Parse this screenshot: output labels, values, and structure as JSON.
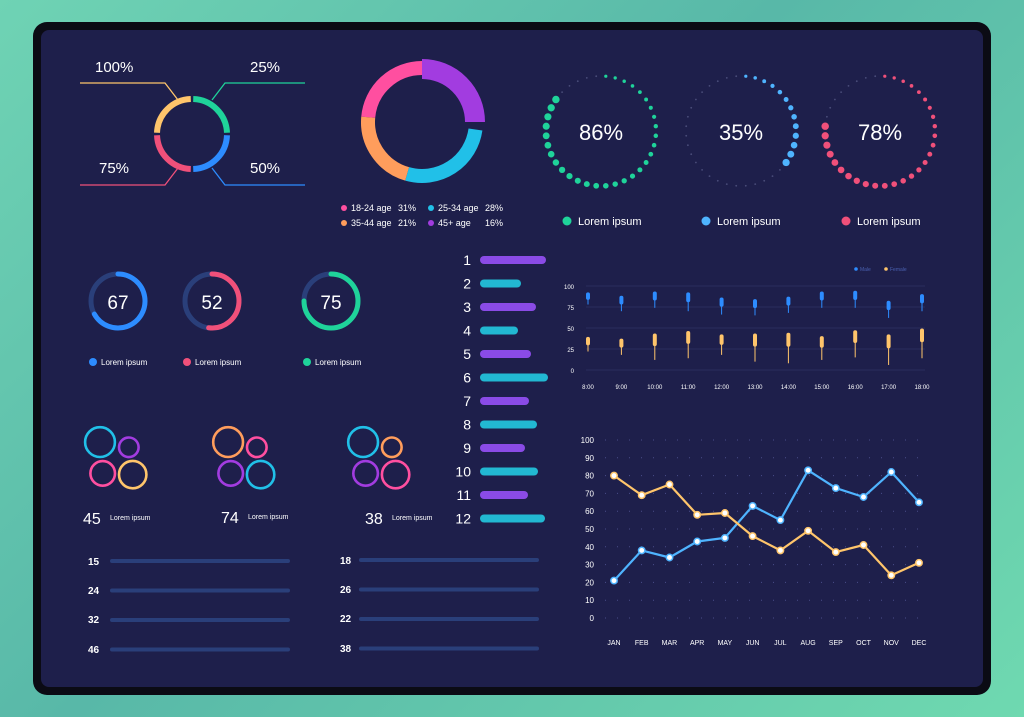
{
  "colors": {
    "blue": "#2d8cff",
    "pink": "#f0507a",
    "green": "#1fd39a",
    "yellow": "#ffc56b",
    "orange": "#ff9d5c",
    "purple": "#a23ce0",
    "cyan": "#21c0e8",
    "violet": "#8a4be6",
    "teal": "#22b8d2",
    "track": "#2a3f7a"
  },
  "ring_callouts": [
    {
      "label": "100%",
      "color": "#ffc56b"
    },
    {
      "label": "25%",
      "color": "#1fd39a"
    },
    {
      "label": "75%",
      "color": "#f0507a"
    },
    {
      "label": "50%",
      "color": "#2d8cff"
    }
  ],
  "age_donut": {
    "legend": [
      {
        "label": "18-24 age",
        "value": "31%",
        "color": "#ff4fa0"
      },
      {
        "label": "25-34 age",
        "value": "28%",
        "color": "#21c0e8"
      },
      {
        "label": "35-44 age",
        "value": "21%",
        "color": "#ff9d5c"
      },
      {
        "label": "45+ age",
        "value": "16%",
        "color": "#a23ce0"
      }
    ]
  },
  "dot_gauges": [
    {
      "value": "86%",
      "fraction": 0.86,
      "label": "Lorem ipsum",
      "color": "#1fd39a"
    },
    {
      "value": "35%",
      "fraction": 0.35,
      "label": "Lorem ipsum",
      "color": "#4fb4ff"
    },
    {
      "value": "78%",
      "fraction": 0.78,
      "label": "Lorem ipsum",
      "color": "#f0507a"
    }
  ],
  "ring_gauges": [
    {
      "value": "67",
      "fraction": 0.67,
      "label": "Lorem ipsum",
      "color": "#2d8cff"
    },
    {
      "value": "52",
      "fraction": 0.52,
      "label": "Lorem ipsum",
      "color": "#f0507a"
    },
    {
      "value": "75",
      "fraction": 0.75,
      "label": "Lorem ipsum",
      "color": "#1fd39a"
    }
  ],
  "flowers": [
    {
      "value": "45",
      "label": "Lorem ipsum"
    },
    {
      "value": "74",
      "label": "Lorem ipsum"
    },
    {
      "value": "38",
      "label": "Lorem ipsum"
    }
  ],
  "progress_left": [
    {
      "label": "15",
      "fraction": 0.72
    },
    {
      "label": "24",
      "fraction": 0.49
    },
    {
      "label": "32",
      "fraction": 0.63
    },
    {
      "label": "46",
      "fraction": 0.43
    }
  ],
  "progress_right": [
    {
      "label": "18",
      "fraction": 0.47
    },
    {
      "label": "26",
      "fraction": 0.77
    },
    {
      "label": "22",
      "fraction": 0.55
    },
    {
      "label": "38",
      "fraction": 0.66
    }
  ],
  "chart_data": [
    {
      "type": "bar",
      "orientation": "horizontal",
      "categories": [
        "1",
        "2",
        "3",
        "4",
        "5",
        "6",
        "7",
        "8",
        "9",
        "10",
        "11",
        "12"
      ],
      "values": [
        58,
        33,
        48,
        30,
        43,
        60,
        41,
        49,
        37,
        50,
        40,
        57
      ],
      "colors": [
        "#8a4be6",
        "#22b8d2",
        "#8a4be6",
        "#22b8d2",
        "#8a4be6",
        "#22b8d2",
        "#8a4be6",
        "#22b8d2",
        "#8a4be6",
        "#22b8d2",
        "#8a4be6",
        "#22b8d2"
      ]
    },
    {
      "type": "scatter",
      "description_free": "",
      "legend": [
        {
          "name": "Male",
          "color": "#2d8cff"
        },
        {
          "name": "Female",
          "color": "#ffc56b"
        }
      ],
      "legend_placement": "top-right",
      "categories": [
        "8:00",
        "9:00",
        "10:00",
        "11:00",
        "12:00",
        "13:00",
        "14:00",
        "15:00",
        "16:00",
        "17:00",
        "18:00"
      ],
      "yticks": [
        "100",
        "75",
        "50",
        "25",
        "0"
      ],
      "ylim": [
        0,
        100
      ],
      "series": [
        {
          "name": "Male",
          "low": [
            78,
            70,
            74,
            70,
            66,
            65,
            68,
            74,
            74,
            62,
            70
          ],
          "high": [
            90,
            86,
            91,
            90,
            84,
            82,
            85,
            91,
            92,
            80,
            88
          ]
        },
        {
          "name": "Female",
          "low": [
            22,
            18,
            12,
            14,
            18,
            10,
            8,
            12,
            15,
            6,
            14
          ],
          "high": [
            37,
            35,
            41,
            44,
            40,
            41,
            42,
            38,
            45,
            40,
            47
          ]
        }
      ]
    },
    {
      "type": "line",
      "categories": [
        "JAN",
        "FEB",
        "MAR",
        "APR",
        "MAY",
        "JUN",
        "JUL",
        "AUG",
        "SEP",
        "OCT",
        "NOV",
        "DEC"
      ],
      "ylim": [
        0,
        100
      ],
      "yticks": [
        0,
        10,
        20,
        30,
        40,
        50,
        60,
        70,
        80,
        90,
        100
      ],
      "grid": "dotted",
      "series": [
        {
          "color": "#4fb4ff",
          "values": [
            21,
            38,
            34,
            43,
            45,
            63,
            55,
            83,
            73,
            68,
            82,
            65
          ]
        },
        {
          "color": "#ffc56b",
          "values": [
            80,
            69,
            75,
            58,
            59,
            46,
            38,
            49,
            37,
            41,
            24,
            31
          ]
        }
      ]
    }
  ]
}
